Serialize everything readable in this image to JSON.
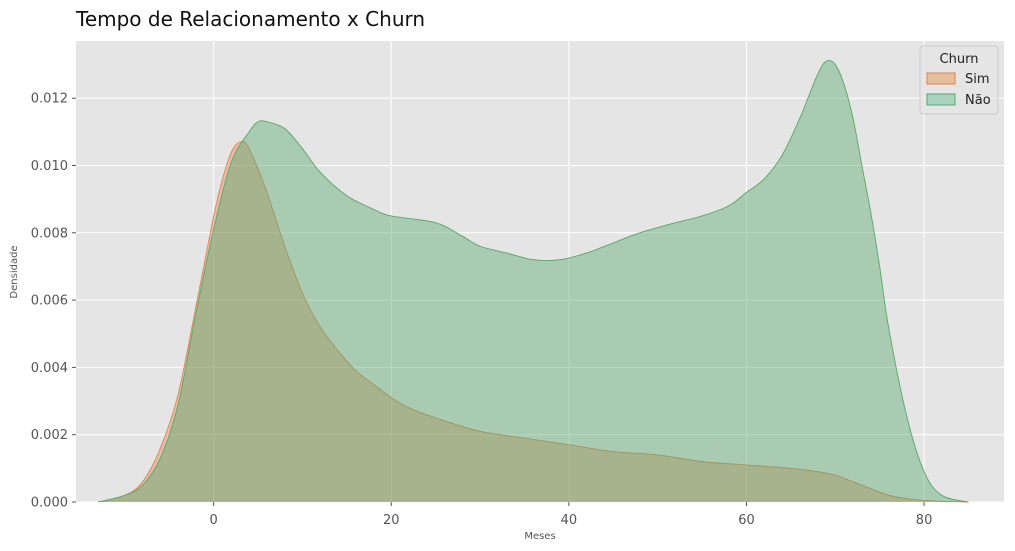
{
  "chart_data": {
    "type": "area",
    "title": "Tempo de Relacionamento x Churn",
    "xlabel": "Meses",
    "ylabel": "Densidade",
    "xlim": [
      -15.5,
      89
    ],
    "ylim": [
      0,
      0.0137
    ],
    "xticks": [
      0,
      20,
      40,
      60,
      80
    ],
    "xtick_labels": [
      "0",
      "20",
      "40",
      "60",
      "80"
    ],
    "yticks": [
      0,
      0.002,
      0.004,
      0.006,
      0.008,
      0.01,
      0.012
    ],
    "ytick_labels": [
      "0.000",
      "0.002",
      "0.004",
      "0.006",
      "0.008",
      "0.010",
      "0.012"
    ],
    "grid": true,
    "legend": {
      "title": "Churn",
      "placement": "top-right"
    },
    "series": [
      {
        "name": "Sim",
        "color": "#dd8452",
        "fill": "#e8bd9c",
        "x": [
          -13,
          -10,
          -8,
          -6,
          -4,
          -2,
          0,
          1,
          2,
          3,
          4,
          6,
          8,
          10,
          12,
          14,
          16,
          18,
          20,
          22,
          25,
          30,
          35,
          40,
          45,
          50,
          55,
          60,
          65,
          68,
          70,
          72,
          74,
          76,
          78,
          80,
          82,
          85
        ],
        "y": [
          0.0,
          0.0002,
          0.0006,
          0.0016,
          0.0032,
          0.0058,
          0.0085,
          0.0096,
          0.0104,
          0.0107,
          0.0105,
          0.0092,
          0.0076,
          0.0062,
          0.0052,
          0.0045,
          0.0039,
          0.0035,
          0.0031,
          0.0028,
          0.0025,
          0.0021,
          0.0019,
          0.0017,
          0.0015,
          0.0014,
          0.0012,
          0.0011,
          0.001,
          0.0009,
          0.0008,
          0.0006,
          0.0004,
          0.0002,
          0.0001,
          5e-05,
          2e-05,
          0.0
        ]
      },
      {
        "name": "Não",
        "color": "#55a868",
        "fill": "#aad3c4",
        "x": [
          -13,
          -10,
          -8,
          -6,
          -4,
          -2,
          0,
          2,
          4,
          5,
          6,
          8,
          10,
          12,
          15,
          18,
          20,
          25,
          28,
          30,
          33,
          36,
          39,
          42,
          45,
          48,
          52,
          55,
          58,
          60,
          62,
          64,
          66,
          68,
          69,
          70,
          71,
          72,
          73,
          74,
          75,
          76,
          78,
          80,
          82,
          85
        ],
        "y": [
          0.0,
          0.0002,
          0.0005,
          0.0013,
          0.0029,
          0.0056,
          0.0081,
          0.0101,
          0.011,
          0.0113,
          0.0113,
          0.0111,
          0.0105,
          0.0098,
          0.0091,
          0.0087,
          0.0085,
          0.0083,
          0.0079,
          0.0076,
          0.0074,
          0.0072,
          0.0072,
          0.0074,
          0.0077,
          0.008,
          0.0083,
          0.0085,
          0.0088,
          0.0092,
          0.0096,
          0.0103,
          0.0114,
          0.0127,
          0.0131,
          0.013,
          0.0124,
          0.0114,
          0.01,
          0.0086,
          0.007,
          0.0052,
          0.0026,
          0.0009,
          0.0002,
          0.0
        ]
      }
    ]
  }
}
